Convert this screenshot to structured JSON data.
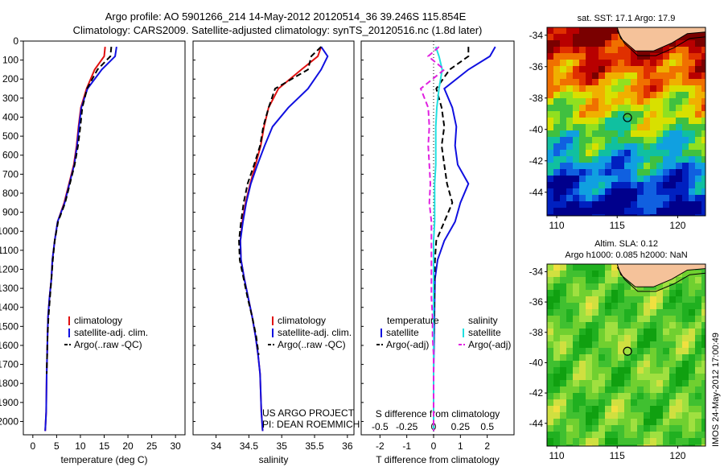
{
  "header": {
    "line1": "Argo profile: AO 5901266_214 14-May-2012 20120514_36 39.246S 115.854E",
    "line2": "Climatology: CARS2009. Satellite-adjusted climatology: synTS_20120516.nc (1.8d later)"
  },
  "colors": {
    "climatology": "#e01010",
    "satellite": "#1010e0",
    "argo": "#000000",
    "sal_satellite": "#20e0e0",
    "sal_argo": "#e020e0",
    "land": "#f5c29a"
  },
  "credits": {
    "line1": "US ARGO PROJECT",
    "line2": "PI: DEAN ROEMMICH"
  },
  "timestamp": "IMOS 24-May-2012 17:00:49",
  "depth_ticks": [
    "0",
    "100",
    "200",
    "300",
    "400",
    "500",
    "600",
    "700",
    "800",
    "900",
    "1000",
    "1100",
    "1200",
    "1300",
    "1400",
    "1500",
    "1600",
    "1700",
    "1800",
    "1900",
    "2000"
  ],
  "chart_data": [
    {
      "type": "line",
      "xlabel": "temperature (deg C)",
      "xticks": [
        "0",
        "5",
        "10",
        "15",
        "20",
        "25",
        "30"
      ],
      "xlim": [
        -2,
        32
      ],
      "ylim": [
        2070,
        0
      ],
      "legend": {
        "placement": "lower-center",
        "entries": [
          "climatology",
          "satellite-adj. clim.",
          "Argo(..raw -QC)"
        ]
      },
      "series": [
        {
          "name": "climatology",
          "color_key": "climatology",
          "x": [
            15.2,
            15.0,
            13.0,
            11.3,
            10.1,
            9.6,
            9.2,
            8.6,
            7.6,
            6.6,
            5.2,
            4.6,
            4.1,
            3.9,
            3.5,
            3.2,
            3.1,
            3.0,
            2.9,
            2.8,
            2.6
          ],
          "y": [
            30,
            80,
            150,
            250,
            350,
            450,
            550,
            650,
            750,
            850,
            950,
            1050,
            1150,
            1250,
            1350,
            1450,
            1550,
            1650,
            1750,
            1950,
            2050
          ]
        },
        {
          "name": "satellite-adj. clim.",
          "color_key": "satellite",
          "x": [
            17.6,
            17.3,
            14.5,
            11.5,
            10.2,
            9.7,
            9.3,
            8.7,
            7.7,
            6.7,
            5.2,
            4.6,
            4.1,
            3.9,
            3.5,
            3.2,
            3.1,
            3.0,
            2.9,
            2.8,
            2.6
          ],
          "y": [
            30,
            80,
            150,
            250,
            350,
            450,
            550,
            650,
            750,
            850,
            950,
            1050,
            1150,
            1250,
            1350,
            1450,
            1550,
            1650,
            1750,
            1950,
            2050
          ]
        },
        {
          "name": "Argo(..raw -QC)",
          "color_key": "argo",
          "x": [
            16.5,
            16.3,
            13.6,
            11.4,
            10.4,
            10.0,
            9.5,
            8.8,
            7.8,
            6.8,
            5.3,
            4.6,
            4.2,
            3.9,
            3.6,
            3.3,
            3.1,
            3.0,
            2.9
          ],
          "y": [
            30,
            80,
            150,
            250,
            350,
            450,
            550,
            650,
            750,
            850,
            950,
            1050,
            1150,
            1250,
            1350,
            1450,
            1550,
            1650,
            1750
          ]
        }
      ]
    },
    {
      "type": "line",
      "xlabel": "salinity",
      "xticks": [
        "34",
        "34.5",
        "35",
        "35.5",
        "36"
      ],
      "xlim": [
        33.65,
        36.1
      ],
      "ylim": [
        2070,
        0
      ],
      "legend": {
        "placement": "lower-right",
        "entries": [
          "climatology",
          "satellite-adj. clim.",
          "Argo(..raw -QC)"
        ]
      },
      "series": [
        {
          "name": "climatology",
          "color_key": "climatology",
          "x": [
            35.6,
            35.55,
            35.3,
            34.95,
            34.8,
            34.73,
            34.68,
            34.6,
            34.52,
            34.45,
            34.4,
            34.37,
            34.38,
            34.43,
            34.49,
            34.55,
            34.6,
            34.64,
            34.67,
            34.69,
            34.71
          ],
          "y": [
            30,
            80,
            150,
            250,
            350,
            450,
            550,
            650,
            750,
            850,
            950,
            1050,
            1150,
            1250,
            1350,
            1450,
            1550,
            1650,
            1750,
            1950,
            2050
          ]
        },
        {
          "name": "satellite-adj. clim.",
          "color_key": "satellite",
          "x": [
            35.6,
            35.7,
            35.6,
            35.4,
            35.1,
            34.86,
            34.74,
            34.63,
            34.53,
            34.46,
            34.41,
            34.37,
            34.38,
            34.43,
            34.49,
            34.55,
            34.6,
            34.64,
            34.67,
            34.69,
            34.71
          ],
          "y": [
            30,
            80,
            150,
            250,
            350,
            450,
            550,
            650,
            750,
            850,
            950,
            1050,
            1150,
            1250,
            1350,
            1450,
            1550,
            1650,
            1750,
            1950,
            2050
          ]
        },
        {
          "name": "Argo(..raw -QC)",
          "color_key": "argo",
          "x": [
            35.6,
            35.45,
            35.4,
            34.9,
            34.8,
            34.72,
            34.67,
            34.58,
            34.48,
            34.42,
            34.38,
            34.35,
            34.36,
            34.42,
            34.48,
            34.55,
            34.61,
            34.65
          ],
          "y": [
            30,
            80,
            150,
            250,
            350,
            450,
            550,
            650,
            750,
            850,
            950,
            1050,
            1150,
            1250,
            1350,
            1450,
            1550,
            1650
          ]
        }
      ]
    },
    {
      "type": "line",
      "xlabel": "T difference from climatology",
      "xticks": [
        "-2",
        "-1",
        "0",
        "1",
        "2"
      ],
      "xlim": [
        -2.7,
        3.0
      ],
      "x2label": "S difference from climatology",
      "x2ticks": [
        "-0.5",
        "-0.25",
        "0",
        "0.25",
        "0.5"
      ],
      "x2lim": [
        -0.675,
        0.75
      ],
      "ylim": [
        2070,
        0
      ],
      "legend": {
        "placement": "lower-center",
        "headers": [
          "temperature",
          "salinity"
        ],
        "entries": [
          "satellite",
          "Argo(-adj)",
          "satellite",
          "Argo(-adj)"
        ]
      },
      "series": [
        {
          "name": "satellite",
          "color_key": "satellite",
          "axis": "T",
          "x": [
            2.3,
            2.1,
            1.3,
            0.4,
            0.7,
            0.85,
            0.8,
            0.9,
            1.3,
            1.0,
            0.8,
            0.4,
            0.15,
            0.05,
            0.04,
            0.03,
            0.02,
            0.01,
            0.0,
            0.0,
            0.0
          ],
          "y": [
            30,
            80,
            150,
            250,
            350,
            450,
            550,
            650,
            750,
            850,
            950,
            1050,
            1150,
            1250,
            1350,
            1450,
            1550,
            1650,
            1750,
            1950,
            2050
          ]
        },
        {
          "name": "Argo(-adj)",
          "color_key": "argo",
          "axis": "T",
          "x": [
            1.3,
            1.3,
            0.6,
            0.1,
            0.3,
            0.4,
            0.3,
            0.4,
            0.5,
            0.7,
            0.4,
            0.1,
            0.05,
            0.03,
            0.03,
            0.02,
            0.01,
            0.0,
            0.0,
            0.0,
            0.0
          ],
          "y": [
            30,
            80,
            150,
            250,
            350,
            450,
            550,
            650,
            750,
            850,
            950,
            1050,
            1150,
            1250,
            1350,
            1450,
            1550,
            1650,
            1750,
            1950,
            2050
          ]
        },
        {
          "name": "satellite",
          "color_key": "sal_satellite",
          "axis": "S",
          "x": [
            0.02,
            0.05,
            0.08,
            0.05,
            0.03,
            0.02,
            0.02,
            0.02,
            0.01,
            0.01,
            0.01,
            0.0,
            0.0,
            0.0,
            0.0,
            0.0,
            0.0,
            0.0,
            0.0,
            0.0,
            0.0
          ],
          "y": [
            30,
            80,
            150,
            250,
            350,
            450,
            550,
            650,
            750,
            850,
            950,
            1050,
            1150,
            1250,
            1350,
            1450,
            1550,
            1650,
            1750,
            1950,
            2050
          ]
        },
        {
          "name": "Argo(-adj)",
          "color_key": "sal_argo",
          "axis": "S",
          "x": [
            0.05,
            -0.05,
            0.1,
            -0.12,
            -0.05,
            -0.04,
            -0.05,
            -0.04,
            -0.03,
            -0.04,
            -0.02,
            -0.02,
            -0.02,
            -0.02,
            -0.02,
            -0.01,
            -0.01,
            0.0,
            0.0,
            0.0,
            0.0
          ],
          "y": [
            30,
            80,
            150,
            250,
            350,
            450,
            550,
            650,
            750,
            850,
            950,
            1050,
            1150,
            1250,
            1350,
            1450,
            1550,
            1650,
            1750,
            1950,
            2050
          ]
        }
      ]
    },
    {
      "type": "heatmap",
      "title": "sat. SST: 17.1  Argo: 17.9",
      "xticks": [
        "110",
        "115",
        "120"
      ],
      "yticks": [
        "-34",
        "-36",
        "-38",
        "-40",
        "-42",
        "-44"
      ],
      "xlim": [
        109.2,
        122.3
      ],
      "ylim": [
        -45.5,
        -33.5
      ],
      "marker": {
        "lon": 115.854,
        "lat": -39.246
      }
    },
    {
      "type": "heatmap",
      "title": "Altim. SLA: 0.12",
      "subtitle": "Argo h1000: 0.085 h2000: NaN",
      "xticks": [
        "110",
        "115",
        "120"
      ],
      "yticks": [
        "-34",
        "-36",
        "-38",
        "-40",
        "-42",
        "-44"
      ],
      "xlim": [
        109.2,
        122.3
      ],
      "ylim": [
        -45.5,
        -33.5
      ],
      "marker": {
        "lon": 115.854,
        "lat": -39.246
      }
    }
  ]
}
